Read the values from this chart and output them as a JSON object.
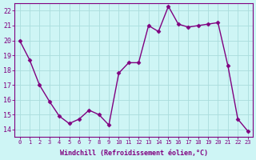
{
  "x": [
    0,
    1,
    2,
    3,
    4,
    5,
    6,
    7,
    8,
    9,
    10,
    11,
    12,
    13,
    14,
    15,
    16,
    17,
    18,
    19,
    20,
    21,
    22,
    23
  ],
  "y": [
    20.0,
    18.7,
    17.0,
    15.9,
    14.9,
    14.4,
    14.7,
    15.3,
    15.0,
    14.3,
    17.8,
    18.5,
    18.5,
    21.0,
    20.6,
    22.3,
    21.1,
    20.9,
    21.0,
    21.1,
    21.2,
    18.3,
    14.7,
    13.9
  ],
  "line_color": "#800080",
  "marker": "D",
  "markersize": 2.5,
  "linewidth": 1.0,
  "bg_color": "#cef5f5",
  "grid_color": "#aadddd",
  "xlabel": "Windchill (Refroidissement éolien,°C)",
  "xlabel_color": "#800080",
  "tick_color": "#800080",
  "ylim": [
    13.5,
    22.5
  ],
  "xlim": [
    -0.5,
    23.5
  ],
  "yticks": [
    14,
    15,
    16,
    17,
    18,
    19,
    20,
    21,
    22
  ],
  "xticks": [
    0,
    1,
    2,
    3,
    4,
    5,
    6,
    7,
    8,
    9,
    10,
    11,
    12,
    13,
    14,
    15,
    16,
    17,
    18,
    19,
    20,
    21,
    22,
    23
  ],
  "xtick_labels": [
    "0",
    "1",
    "2",
    "3",
    "4",
    "5",
    "6",
    "7",
    "8",
    "9",
    "10",
    "11",
    "12",
    "13",
    "14",
    "15",
    "16",
    "17",
    "18",
    "19",
    "20",
    "21",
    "22",
    "23"
  ]
}
